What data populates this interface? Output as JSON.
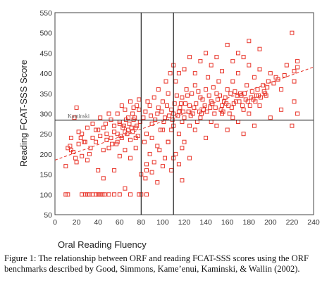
{
  "chart_data": {
    "type": "scatter",
    "xlabel": "Oral Reading Fluency",
    "ylabel": "Reading FCAT-SSS Score",
    "xlim": [
      0,
      240
    ],
    "ylim": [
      50,
      550
    ],
    "xticks": [
      "0",
      "20",
      "40",
      "60",
      "80",
      "100",
      "120",
      "140",
      "160",
      "180",
      "200",
      "220",
      "240"
    ],
    "yticks": [
      "50",
      "100",
      "150",
      "200",
      "250",
      "300",
      "350",
      "400",
      "450",
      "500",
      "550"
    ],
    "grid": false,
    "legend": "none",
    "marker_color": "#e8352a",
    "marker": "open-square",
    "trend_line": {
      "slope": 0.96,
      "intercept": 185,
      "x_range": [
        0,
        240
      ],
      "style": "dashed"
    },
    "reference_lines": {
      "vertical": [
        80,
        110
      ],
      "horizontal": [
        284
      ],
      "horizontal_label": "Kaminski"
    },
    "points": [
      [
        10,
        100
      ],
      [
        12,
        100
      ],
      [
        25,
        100
      ],
      [
        28,
        100
      ],
      [
        30,
        100
      ],
      [
        32,
        100
      ],
      [
        35,
        100
      ],
      [
        38,
        100
      ],
      [
        40,
        100
      ],
      [
        42,
        100
      ],
      [
        44,
        100
      ],
      [
        46,
        100
      ],
      [
        50,
        100
      ],
      [
        55,
        100
      ],
      [
        60,
        100
      ],
      [
        65,
        115
      ],
      [
        70,
        100
      ],
      [
        78,
        100
      ],
      [
        80,
        100
      ],
      [
        85,
        100
      ],
      [
        10,
        170
      ],
      [
        12,
        215
      ],
      [
        15,
        210
      ],
      [
        18,
        290
      ],
      [
        20,
        315
      ],
      [
        22,
        225
      ],
      [
        25,
        250
      ],
      [
        28,
        230
      ],
      [
        30,
        265
      ],
      [
        32,
        200
      ],
      [
        35,
        275
      ],
      [
        38,
        230
      ],
      [
        40,
        260
      ],
      [
        42,
        290
      ],
      [
        45,
        210
      ],
      [
        48,
        250
      ],
      [
        50,
        300
      ],
      [
        52,
        240
      ],
      [
        55,
        270
      ],
      [
        58,
        230
      ],
      [
        60,
        280
      ],
      [
        62,
        320
      ],
      [
        65,
        255
      ],
      [
        68,
        290
      ],
      [
        70,
        235
      ],
      [
        72,
        300
      ],
      [
        75,
        265
      ],
      [
        78,
        310
      ],
      [
        20,
        180
      ],
      [
        30,
        185
      ],
      [
        40,
        160
      ],
      [
        45,
        140
      ],
      [
        55,
        160
      ],
      [
        60,
        195
      ],
      [
        70,
        190
      ],
      [
        75,
        215
      ],
      [
        80,
        150
      ],
      [
        85,
        160
      ],
      [
        65,
        210
      ],
      [
        50,
        215
      ],
      [
        35,
        240
      ],
      [
        45,
        265
      ],
      [
        58,
        300
      ],
      [
        68,
        260
      ],
      [
        73,
        285
      ],
      [
        77,
        245
      ],
      [
        15,
        240
      ],
      [
        25,
        195
      ],
      [
        62,
        240
      ],
      [
        52,
        285
      ],
      [
        82,
        290
      ],
      [
        85,
        250
      ],
      [
        88,
        320
      ],
      [
        90,
        275
      ],
      [
        92,
        340
      ],
      [
        95,
        300
      ],
      [
        98,
        260
      ],
      [
        100,
        330
      ],
      [
        102,
        290
      ],
      [
        105,
        350
      ],
      [
        108,
        310
      ],
      [
        110,
        270
      ],
      [
        112,
        380
      ],
      [
        115,
        305
      ],
      [
        118,
        340
      ],
      [
        120,
        290
      ],
      [
        122,
        360
      ],
      [
        125,
        320
      ],
      [
        128,
        300
      ],
      [
        130,
        370
      ],
      [
        132,
        280
      ],
      [
        135,
        340
      ],
      [
        138,
        310
      ],
      [
        140,
        360
      ],
      [
        142,
        390
      ],
      [
        145,
        330
      ],
      [
        148,
        300
      ],
      [
        150,
        350
      ],
      [
        152,
        380
      ],
      [
        155,
        320
      ],
      [
        158,
        340
      ],
      [
        160,
        360
      ],
      [
        162,
        300
      ],
      [
        165,
        380
      ],
      [
        168,
        330
      ],
      [
        170,
        400
      ],
      [
        172,
        350
      ],
      [
        175,
        310
      ],
      [
        178,
        370
      ],
      [
        180,
        420
      ],
      [
        182,
        340
      ],
      [
        185,
        390
      ],
      [
        188,
        360
      ],
      [
        190,
        410
      ],
      [
        195,
        350
      ],
      [
        198,
        380
      ],
      [
        200,
        400
      ],
      [
        205,
        390
      ],
      [
        210,
        360
      ],
      [
        215,
        420
      ],
      [
        220,
        500
      ],
      [
        222,
        380
      ],
      [
        225,
        430
      ],
      [
        222,
        330
      ],
      [
        225,
        300
      ],
      [
        222,
        405
      ],
      [
        225,
        415
      ],
      [
        220,
        270
      ],
      [
        90,
        240
      ],
      [
        95,
        220
      ],
      [
        100,
        260
      ],
      [
        105,
        230
      ],
      [
        110,
        300
      ],
      [
        115,
        250
      ],
      [
        118,
        280
      ],
      [
        120,
        230
      ],
      [
        125,
        270
      ],
      [
        130,
        260
      ],
      [
        135,
        290
      ],
      [
        140,
        240
      ],
      [
        145,
        280
      ],
      [
        150,
        270
      ],
      [
        155,
        300
      ],
      [
        160,
        260
      ],
      [
        165,
        290
      ],
      [
        170,
        280
      ],
      [
        175,
        250
      ],
      [
        180,
        300
      ],
      [
        185,
        270
      ],
      [
        190,
        320
      ],
      [
        200,
        290
      ],
      [
        210,
        310
      ],
      [
        83,
        230
      ],
      [
        88,
        200
      ],
      [
        92,
        180
      ],
      [
        97,
        210
      ],
      [
        102,
        190
      ],
      [
        108,
        160
      ],
      [
        112,
        200
      ],
      [
        118,
        215
      ],
      [
        85,
        175
      ],
      [
        90,
        155
      ],
      [
        95,
        130
      ],
      [
        100,
        170
      ],
      [
        105,
        230
      ],
      [
        110,
        190
      ],
      [
        115,
        175
      ],
      [
        108,
        260
      ],
      [
        84,
        140
      ],
      [
        118,
        135
      ],
      [
        125,
        190
      ],
      [
        120,
        410
      ],
      [
        125,
        440
      ],
      [
        130,
        400
      ],
      [
        135,
        430
      ],
      [
        140,
        450
      ],
      [
        145,
        420
      ],
      [
        150,
        440
      ],
      [
        160,
        470
      ],
      [
        165,
        430
      ],
      [
        170,
        450
      ],
      [
        175,
        440
      ],
      [
        180,
        480
      ],
      [
        190,
        460
      ],
      [
        155,
        405
      ],
      [
        115,
        400
      ],
      [
        110,
        420
      ],
      [
        96,
        360
      ],
      [
        103,
        380
      ],
      [
        107,
        400
      ],
      [
        113,
        345
      ],
      [
        117,
        325
      ],
      [
        123,
        345
      ],
      [
        127,
        350
      ],
      [
        133,
        355
      ],
      [
        137,
        335
      ],
      [
        143,
        345
      ],
      [
        147,
        365
      ],
      [
        153,
        345
      ],
      [
        157,
        330
      ],
      [
        163,
        350
      ],
      [
        167,
        355
      ],
      [
        173,
        345
      ],
      [
        177,
        335
      ],
      [
        183,
        355
      ],
      [
        187,
        345
      ],
      [
        193,
        370
      ],
      [
        197,
        365
      ],
      [
        203,
        375
      ],
      [
        207,
        385
      ],
      [
        213,
        395
      ],
      [
        84,
        305
      ],
      [
        86,
        330
      ],
      [
        89,
        295
      ],
      [
        93,
        285
      ],
      [
        96,
        315
      ],
      [
        99,
        305
      ],
      [
        101,
        280
      ],
      [
        104,
        320
      ],
      [
        106,
        295
      ],
      [
        109,
        285
      ],
      [
        111,
        325
      ],
      [
        114,
        295
      ],
      [
        116,
        315
      ],
      [
        119,
        305
      ],
      [
        121,
        325
      ],
      [
        124,
        305
      ],
      [
        126,
        295
      ],
      [
        129,
        315
      ],
      [
        131,
        325
      ],
      [
        134,
        305
      ],
      [
        136,
        300
      ],
      [
        139,
        320
      ],
      [
        141,
        305
      ],
      [
        144,
        315
      ],
      [
        146,
        325
      ],
      [
        149,
        315
      ],
      [
        151,
        335
      ],
      [
        154,
        310
      ],
      [
        156,
        305
      ],
      [
        159,
        325
      ],
      [
        161,
        320
      ],
      [
        164,
        315
      ],
      [
        166,
        325
      ],
      [
        169,
        345
      ],
      [
        171,
        330
      ],
      [
        174,
        320
      ],
      [
        176,
        350
      ],
      [
        179,
        330
      ],
      [
        181,
        320
      ],
      [
        184,
        335
      ],
      [
        186,
        330
      ],
      [
        189,
        345
      ],
      [
        191,
        340
      ],
      [
        194,
        355
      ],
      [
        196,
        345
      ],
      [
        60,
        275
      ],
      [
        63,
        265
      ],
      [
        66,
        285
      ],
      [
        69,
        275
      ],
      [
        71,
        265
      ],
      [
        74,
        290
      ],
      [
        76,
        270
      ],
      [
        79,
        280
      ],
      [
        55,
        255
      ],
      [
        58,
        250
      ],
      [
        61,
        245
      ],
      [
        64,
        270
      ],
      [
        67,
        250
      ],
      [
        72,
        255
      ],
      [
        75,
        240
      ],
      [
        48,
        235
      ],
      [
        42,
        245
      ],
      [
        38,
        260
      ],
      [
        33,
        215
      ],
      [
        27,
        230
      ],
      [
        22,
        255
      ],
      [
        17,
        205
      ],
      [
        14,
        220
      ],
      [
        19,
        190
      ],
      [
        24,
        240
      ],
      [
        57,
        225
      ],
      [
        47,
        275
      ],
      [
        53,
        225
      ],
      [
        65,
        310
      ],
      [
        70,
        330
      ],
      [
        78,
        335
      ],
      [
        76,
        320
      ],
      [
        73,
        315
      ]
    ]
  },
  "caption": {
    "line1": "Figure 1: The relationship between ORF and reading FCAT-SSS scores using the ORF",
    "line2": "benchmarks described by Good, Simmons, Kame’enui, Kaminski, & Wallin (2002)."
  }
}
